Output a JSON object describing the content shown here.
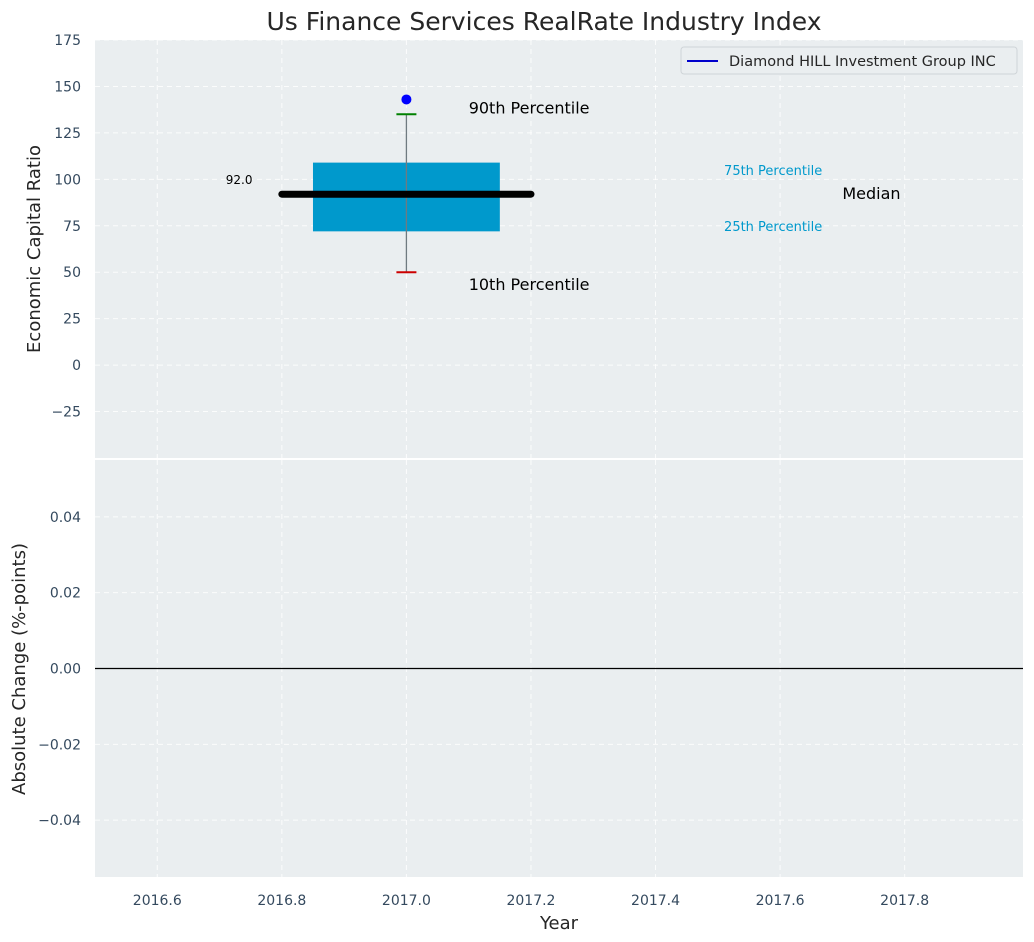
{
  "chart_data": [
    {
      "type": "box",
      "title": "Us Finance Services RealRate Industry Index",
      "ylabel": "Economic Capital Ratio",
      "xlabel": "",
      "xlim": [
        2016.5,
        2017.99
      ],
      "ylim": [
        -50,
        175
      ],
      "yticks": [
        -25,
        0,
        25,
        50,
        75,
        100,
        125,
        150,
        175
      ],
      "grid": true,
      "box": {
        "x": 2017.0,
        "x_left": 2016.85,
        "x_right": 2017.15,
        "p10": 50,
        "p25": 72,
        "median": 92,
        "p75": 109,
        "p90": 135,
        "median_line_x": [
          2016.8,
          2017.2
        ],
        "median_label": "92.0",
        "median_label_x": 2016.71,
        "color": "#0099cc"
      },
      "company_point": {
        "x": 2017.0,
        "y": 143,
        "color": "#0000ff"
      },
      "annotations": [
        {
          "text": "90th Percentile",
          "x": 2017.1,
          "y": 138,
          "color": "#000000",
          "size": "large"
        },
        {
          "text": "10th Percentile",
          "x": 2017.1,
          "y": 43,
          "color": "#000000",
          "size": "large"
        },
        {
          "text": "75th Percentile",
          "x": 2017.51,
          "y": 105,
          "color": "#0099cc",
          "size": "small"
        },
        {
          "text": "25th Percentile",
          "x": 2017.51,
          "y": 75,
          "color": "#0099cc",
          "size": "small"
        },
        {
          "text": "Median",
          "x": 2017.7,
          "y": 92,
          "color": "#000000",
          "size": "large"
        }
      ],
      "legend": {
        "position": "top-right",
        "entries": [
          {
            "label": "Diamond HILL Investment Group INC",
            "color": "#0000cc"
          }
        ]
      }
    },
    {
      "type": "line",
      "title": "",
      "ylabel": "Absolute Change (%-points)",
      "xlabel": "Year",
      "xlim": [
        2016.5,
        2017.99
      ],
      "ylim": [
        -0.055,
        0.055
      ],
      "yticks": [
        -0.04,
        -0.02,
        0.0,
        0.02,
        0.04
      ],
      "ytick_labels": [
        "−0.04",
        "−0.02",
        "0.00",
        "0.02",
        "0.04"
      ],
      "xticks": [
        2016.6,
        2016.8,
        2017.0,
        2017.2,
        2017.4,
        2017.6,
        2017.8
      ],
      "xtick_labels": [
        "2016.6",
        "2016.8",
        "2017.0",
        "2017.2",
        "2017.4",
        "2017.6",
        "2017.8"
      ],
      "grid": true,
      "zero_line": 0.0,
      "series": []
    }
  ]
}
